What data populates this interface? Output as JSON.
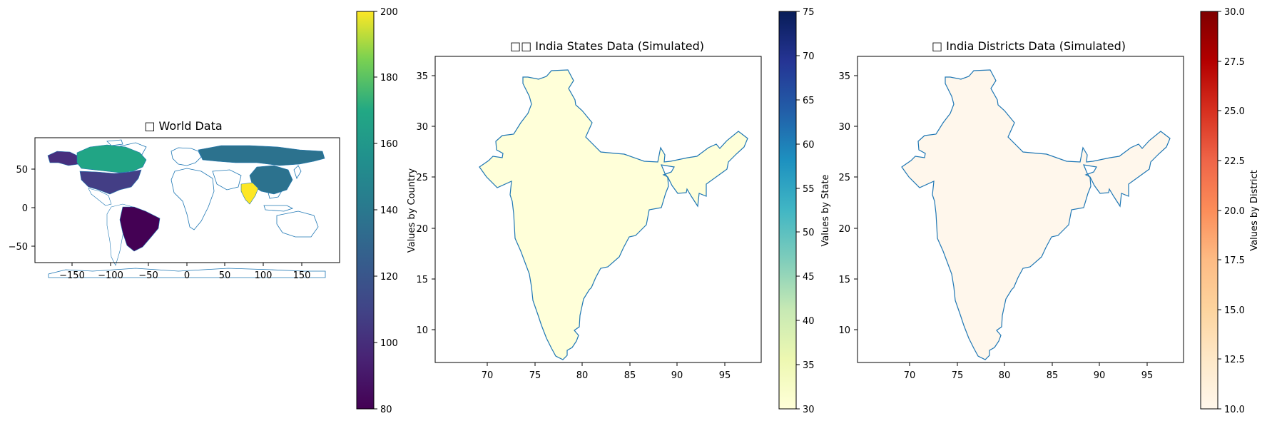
{
  "figure": {
    "panels": [
      {
        "title": "□ World Data",
        "x_ticks": [
          "−150",
          "−100",
          "−50",
          "0",
          "50",
          "100",
          "150"
        ],
        "y_ticks": [
          "50",
          "0",
          "−50"
        ],
        "colorbar": {
          "label": "Values by Country",
          "cmap": "viridis",
          "range": [
            80,
            200
          ],
          "ticks": [
            "80",
            "100",
            "120",
            "140",
            "160",
            "180",
            "200"
          ]
        }
      },
      {
        "title": "□□ India States Data (Simulated)",
        "x_ticks": [
          "70",
          "75",
          "80",
          "85",
          "90",
          "95"
        ],
        "y_ticks": [
          "10",
          "15",
          "20",
          "25",
          "30",
          "35"
        ],
        "colorbar": {
          "label": "Values by State",
          "cmap": "YlGnBu",
          "range": [
            30,
            75
          ],
          "ticks": [
            "30",
            "35",
            "40",
            "45",
            "50",
            "55",
            "60",
            "65",
            "70",
            "75"
          ]
        }
      },
      {
        "title": "□ India Districts Data (Simulated)",
        "x_ticks": [
          "70",
          "75",
          "80",
          "85",
          "90",
          "95"
        ],
        "y_ticks": [
          "10",
          "15",
          "20",
          "25",
          "30",
          "35"
        ],
        "colorbar": {
          "label": "Values by District",
          "cmap": "OrRd",
          "range": [
            10,
            30
          ],
          "ticks": [
            "10.0",
            "12.5",
            "15.0",
            "17.5",
            "20.0",
            "22.5",
            "25.0",
            "27.5",
            "30.0"
          ]
        }
      }
    ]
  },
  "chart_data": [
    {
      "type": "choropleth",
      "title": "□ World Data",
      "colorbar_label": "Values by Country",
      "xlim": [
        -200,
        200
      ],
      "ylim": [
        -95,
        90
      ],
      "vrange": [
        80,
        200
      ],
      "regions": [
        {
          "name": "India",
          "value": 200
        },
        {
          "name": "Canada",
          "value": 150
        },
        {
          "name": "China",
          "value": 120
        },
        {
          "name": "Russia",
          "value": 120
        },
        {
          "name": "Alaska",
          "value": 105
        },
        {
          "name": "United States",
          "value": 105
        },
        {
          "name": "Brazil",
          "value": 80
        }
      ]
    },
    {
      "type": "choropleth",
      "title": "□□ India States Data (Simulated)",
      "colorbar_label": "Values by State",
      "xlim": [
        67,
        98.5
      ],
      "ylim": [
        6.5,
        37
      ],
      "vrange": [
        30,
        75
      ],
      "regions": [
        {
          "name": "India",
          "value": 30
        }
      ]
    },
    {
      "type": "choropleth",
      "title": "□ India Districts Data (Simulated)",
      "colorbar_label": "Values by District",
      "xlim": [
        67,
        98.5
      ],
      "ylim": [
        6.5,
        37
      ],
      "vrange": [
        10,
        30
      ],
      "regions": [
        {
          "name": "India",
          "value": 10
        }
      ]
    }
  ]
}
